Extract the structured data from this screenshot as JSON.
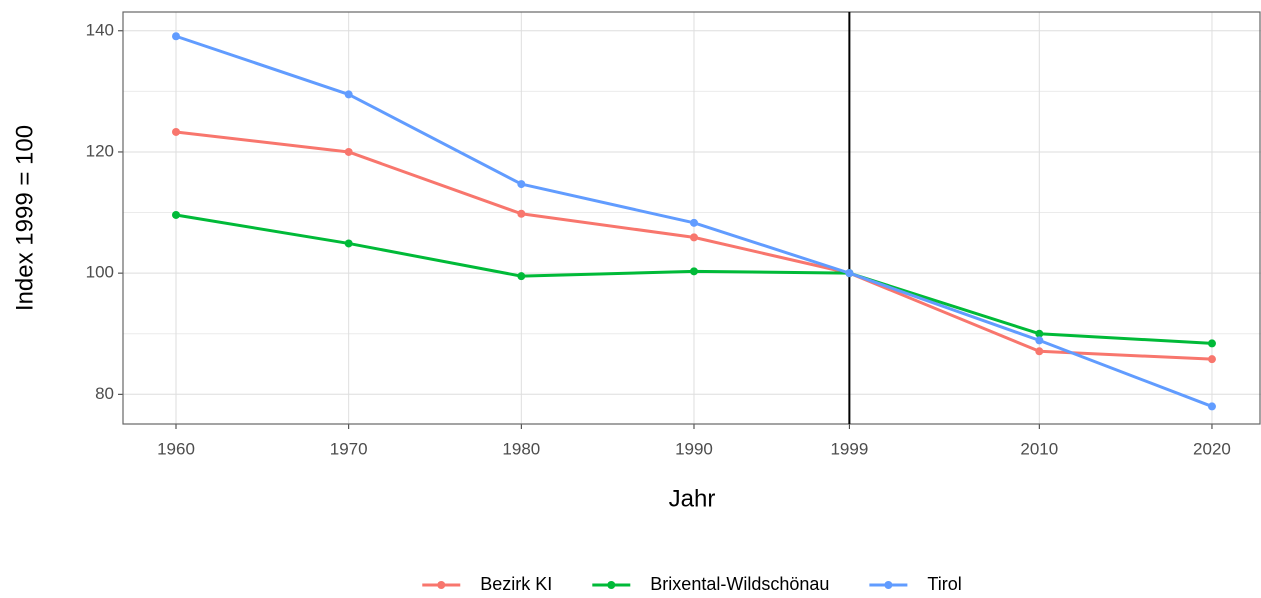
{
  "chart_data": {
    "type": "line",
    "x_label": "Jahr",
    "y_label": "Index 1999 = 100",
    "x": [
      1960,
      1970,
      1980,
      1990,
      1999,
      2010,
      2020
    ],
    "series": [
      {
        "name": "Bezirk KI",
        "color": "#F8766D",
        "values": [
          123.3,
          120.0,
          109.8,
          105.9,
          100,
          87.1,
          85.8
        ]
      },
      {
        "name": "Brixental-Wildschönau",
        "color": "#00BA38",
        "values": [
          109.6,
          104.9,
          99.5,
          100.3,
          100,
          90.0,
          88.4
        ]
      },
      {
        "name": "Tirol",
        "color": "#619CFF",
        "values": [
          139.1,
          129.5,
          114.7,
          108.3,
          100,
          88.9,
          78.0
        ]
      }
    ],
    "xlim": [
      1956.93,
      2022.84
    ],
    "ylim": [
      75.1,
      143.1
    ],
    "xticks": [
      1960,
      1970,
      1980,
      1990,
      1999,
      2010,
      2020
    ],
    "yticks": [
      80,
      100,
      120,
      140
    ],
    "y_minor_grid": [
      90,
      110,
      130
    ],
    "grid": true,
    "vline": 1999,
    "legend": "bottom"
  }
}
